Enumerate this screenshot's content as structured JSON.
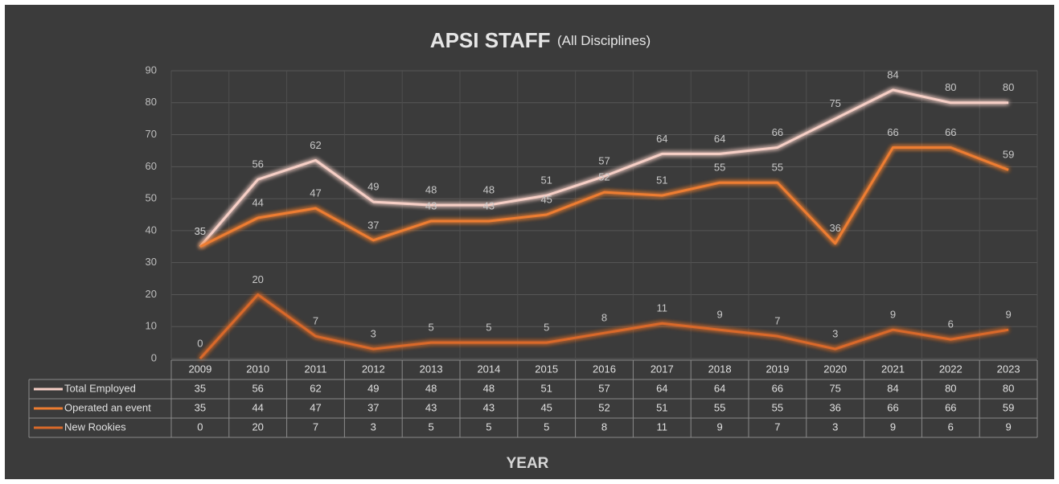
{
  "chart_data": {
    "type": "line",
    "title": "APSI STAFF",
    "subtitle": "(All Disciplines)",
    "x_label": "YEAR",
    "categories": [
      "2009",
      "2010",
      "2011",
      "2012",
      "2013",
      "2014",
      "2015",
      "2016",
      "2017",
      "2018",
      "2019",
      "2020",
      "2021",
      "2022",
      "2023"
    ],
    "series": [
      {
        "name": "Total Employed",
        "color": "#f6cfc6",
        "values": [
          35,
          56,
          62,
          49,
          48,
          48,
          51,
          57,
          64,
          64,
          66,
          75,
          84,
          80,
          80
        ]
      },
      {
        "name": "Operated an event",
        "color": "#ed7d31",
        "values": [
          35,
          44,
          47,
          37,
          43,
          43,
          45,
          52,
          51,
          55,
          55,
          36,
          66,
          66,
          59
        ]
      },
      {
        "name": "New Rookies",
        "color": "#d9692a",
        "values": [
          0,
          20,
          7,
          3,
          5,
          5,
          5,
          8,
          11,
          9,
          7,
          3,
          9,
          6,
          9
        ]
      }
    ],
    "ylim": [
      0,
      90
    ],
    "yticks": [
      0,
      10,
      20,
      30,
      40,
      50,
      60,
      70,
      80,
      90
    ],
    "grid": true,
    "data_table": true
  }
}
